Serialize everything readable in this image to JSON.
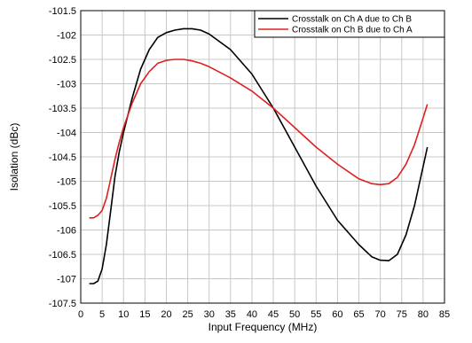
{
  "chart_data": {
    "type": "line",
    "xlabel": "Input Frequency (MHz)",
    "ylabel": "Isolation (dBc)",
    "xlim": [
      0,
      85
    ],
    "ylim": [
      -107.5,
      -101.5
    ],
    "xticks": [
      0,
      5,
      10,
      15,
      20,
      25,
      30,
      35,
      40,
      45,
      50,
      55,
      60,
      65,
      70,
      75,
      80,
      85
    ],
    "yticks": [
      -101.5,
      -102,
      -102.5,
      -103,
      -103.5,
      -104,
      -104.5,
      -105,
      -105.5,
      -106,
      -106.5,
      -107,
      -107.5
    ],
    "xtick_labels": [
      "0",
      "5",
      "10",
      "15",
      "20",
      "25",
      "30",
      "35",
      "40",
      "45",
      "50",
      "55",
      "60",
      "65",
      "70",
      "75",
      "80",
      "85"
    ],
    "ytick_labels": [
      "-101.5",
      "-102",
      "-102.5",
      "-103",
      "-103.5",
      "-104",
      "-104.5",
      "-105",
      "-105.5",
      "-106",
      "-106.5",
      "-107",
      "-107.5"
    ],
    "grid": true,
    "legend_position": "top-right",
    "series": [
      {
        "name": "Crosstalk on Ch A due to Ch B",
        "color": "#000000",
        "x": [
          2,
          3,
          4,
          5,
          6,
          7,
          8,
          9,
          10,
          12,
          14,
          16,
          18,
          20,
          22,
          24,
          26,
          28,
          30,
          35,
          40,
          45,
          50,
          55,
          60,
          65,
          68,
          70,
          72,
          74,
          76,
          78,
          80,
          81
        ],
        "y": [
          -107.1,
          -107.1,
          -107.05,
          -106.8,
          -106.3,
          -105.6,
          -104.9,
          -104.4,
          -104,
          -103.3,
          -102.7,
          -102.3,
          -102.05,
          -101.95,
          -101.9,
          -101.87,
          -101.87,
          -101.9,
          -101.98,
          -102.3,
          -102.8,
          -103.5,
          -104.3,
          -105.1,
          -105.8,
          -106.3,
          -106.55,
          -106.62,
          -106.63,
          -106.5,
          -106.1,
          -105.5,
          -104.7,
          -104.3
        ]
      },
      {
        "name": "Crosstalk on Ch B due to Ch A",
        "color": "#e02020",
        "x": [
          2,
          3,
          4,
          5,
          6,
          7,
          8,
          9,
          10,
          12,
          14,
          16,
          18,
          20,
          22,
          24,
          26,
          28,
          30,
          35,
          40,
          45,
          50,
          55,
          60,
          65,
          68,
          70,
          72,
          74,
          76,
          78,
          80,
          81
        ],
        "y": [
          -105.75,
          -105.75,
          -105.7,
          -105.6,
          -105.35,
          -104.95,
          -104.55,
          -104.2,
          -103.9,
          -103.4,
          -103,
          -102.75,
          -102.58,
          -102.52,
          -102.5,
          -102.5,
          -102.53,
          -102.58,
          -102.65,
          -102.88,
          -103.15,
          -103.5,
          -103.9,
          -104.3,
          -104.65,
          -104.95,
          -105.05,
          -105.07,
          -105.05,
          -104.92,
          -104.65,
          -104.25,
          -103.7,
          -103.42
        ]
      }
    ]
  }
}
